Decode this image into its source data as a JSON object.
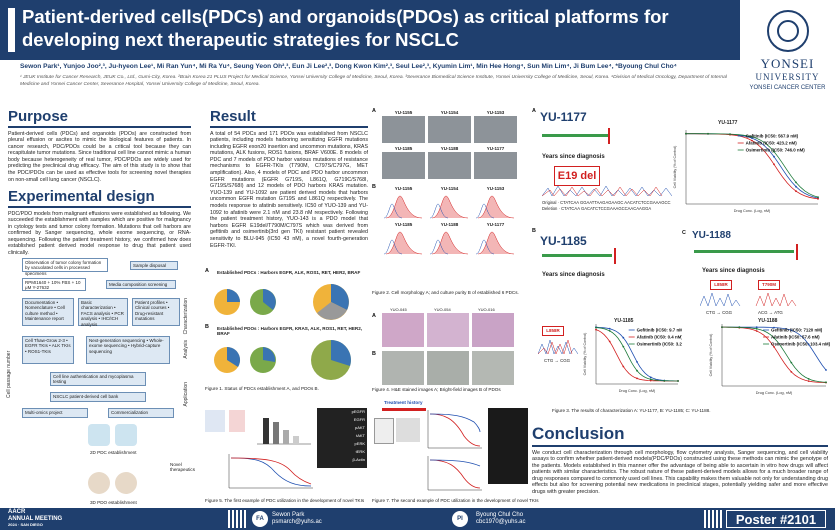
{
  "header": {
    "title_line1": "Patient-derived cells(PDCs) and organoids(PDOs) as critical platforms for",
    "title_line2": "developing next therapeutic strategies for NSCLC",
    "authors": "Sewon Park¹, Yunjoo Joo²,³, Ju-hyeon Lee¹, Mi Ran Yun⁴, Mi Ra Yu⁴, Seung Yeon Oh²,³, Eun Ji Lee²,³, Dong Kwon Kim²,³, Seul Lee²,³, Kyumin Lim¹, Min Hee Hong⁴, Sun Min Lim⁴, Ji Bum Lee⁴, *Byoung Chul Cho⁴",
    "affiliations": "¹ JEUK Institute for Cancer Research, JEUK Co., Ltd., Gumi-City, Korea. ²Brain Korea 21 PLUS Project for Medical Science, Yonsei University College of Medicine, Seoul, Korea. ³Severance Biomedical Science Institute, Yonsei University College of Medicine, Seoul, Korea. ⁴Division of Medical Oncology, Department of Internal Medicine and Yonsei Cancer Center, Severance Hospital, Yonsei University College of Medicine, Seoul, Korea.",
    "logo_line1": "YONSEI",
    "logo_line2": "UNIVERSITY",
    "logo_sub": "YONSEI CANCER CENTER"
  },
  "purpose": {
    "heading": "Purpose",
    "text": "Patient-derived cells (PDCs) and organoids (PDOs) are constructed from pleural effusion or ascites to mimic the biological features of patients. In cancer research, PDC/PDOs could be a critical tool because they can recapitulate tumor mutations. Since traditional cell line cannot mimic a human body because heterogeneity of real tumor, PDC/PDOs are widely used for predicting the preclinical drug efficacy. The aim of this study is to show that the PDC/PDOs can be used as effective tools for screening novel therapies on non-small cell lung cancer (NSCLC)."
  },
  "design": {
    "heading": "Experimental design",
    "text": "PDC/PDO models from malignant effusions were established as following. We succeeded the establishment with samples which are positive for malignancy in cytology tests and tumor colony formation. Mutations that cell harbors are confirmed by Sanger sequencing, whole exome sequencing, or RNA-sequencing. Following the patient treatment history, we confirmed how does established patient derived model response to drug that patient used clinically.",
    "flow": {
      "b1": "Observation of tumor colony formation by vacuolated cells in processed specimens",
      "b2": "Sample disposal",
      "b3": "RPMI1640 + 10% FBS + 10 μM Y-27632",
      "b4": "Media composition screening",
      "b5": "Documentation • Nomenclature • Cell culture method • Maintenance report",
      "b6": "Basic characterization • FACS analysis • PCR analysis • IHC/ICH analysis",
      "b7": "Patient profiles • Clinical courses • Drug-resistant mutations",
      "b8": "Cell Thaw-Grow 2-3 • EGFR TKIs • ALK TKIs • ROS1-TKIs",
      "b9": "Next-generation sequencing • Whole-exome sequencing • Hybrid-capture sequencing",
      "b10": "Cell line authentication and mycoplasma testing",
      "b11": "NSCLC patient-derived cell bank",
      "b12": "Multi-omics project",
      "b13": "Commercialization",
      "s1": "Cell passage number",
      "s2": "Characterization",
      "s3": "Analysis",
      "s4": "Application"
    }
  },
  "result": {
    "heading": "Result",
    "text": "A total of 54 PDCs and 171 PDOs was established from NSCLC patients, including models harboring sensitizing EGFR mutations including EGFR exon20 insertion and uncommon mutations, KRAS mutations, ALK fusions, ROS1 fusions, BRAF V600E. 8 models of PDC and 7 models of PDO harbor various mutations of resistance mechanisms to EGFR-TKIs (T790M, C797S/C797G, MET amplification). Also, 4 models of PDC and PDO harbor uncommon EGFR mutations (EGFR G719S, L861Q, G719C/S768I, G719S/S768I) and 12 models of PDO harbors KRAS mutation. YUO-139 and YU-1092 are patient derived models that harbors uncommon EGFR mutation G719S and L861Q respectively. The models response to afatinib sensitively. IC50 of YUO-139 and YU-1092 to afatinib were 2.1 nM and 23.8 nM respectively. Following the patient treatment history, YUO-143 is a PDO model that harbors EGFR E19del/T790M/C797S which was derived from gefitinib and osimertinib(3rd gen TKI) resistant patient revealed sensitivity to BLU-945 (IC50 43 nM), a novel fourth-generation EGFR-TKI."
  },
  "fig1": {
    "panel_a": "A",
    "panel_b": "B",
    "title_a": "Established PDCs : Harbors EGFR, ALK, ROS1, RET, HER2, BRAF",
    "title_b": "Established PDOs : Harbors EGFR, KRAS, ALK, ROS1, RET, HER2, BRAF",
    "caption": "Figure 1. Status of PDCs establishment A, and PDOs B."
  },
  "fig2": {
    "panel_a": "A",
    "panel_b": "B",
    "labels_a": [
      "YU-1155",
      "YU-1154",
      "YU-1153",
      "YU-1185",
      "YU-1188",
      "YU-1177"
    ],
    "labels_b": [
      "YU-1155",
      "YU-1154",
      "YU-1153",
      "YU-1185",
      "YU-1188",
      "YU-1177"
    ],
    "caption": "Figure 2. Cell morphology A; and culture purity B of established 6 PDCs."
  },
  "fig4": {
    "panel_a": "A",
    "panel_b": "B",
    "labels": [
      "YUO-045",
      "YUO-054",
      "YUO-016"
    ],
    "caption": "Figure 4. H&E stained images A; Bright-field images B of PDOs"
  },
  "fig3": {
    "panel_a": "A",
    "panel_b": "B",
    "panel_c": "C",
    "a_title": "YU-1177",
    "a_mut": "E19 del",
    "a_years": "Years since diagnosis",
    "a_chart_title": "YU-1177",
    "a_seq_orig": "Original · CTATCAA GGAATTAAGAGAAGC AACATCTCCGAAAGCC",
    "a_seq_del": "Deletion · CTATCAA GACATCTCCGAAAGCCAACAAGGA",
    "a_legend": [
      "Gefitinib (IC50: 567.9 nM)",
      "Afatinib (IC50: 423.2 nM)",
      "Osimertinib (IC50: 746.0 nM)"
    ],
    "b_title": "YU-1185",
    "b_years": "Years since diagnosis",
    "b_mut": "L858R",
    "b_seq": "CTG → CGG",
    "b_chart_title": "YU-1185",
    "b_legend": [
      "Gefitinib (IC50: 9.7 nM)",
      "Afatinib (IC50: 0.4 nM)",
      "Osimertinib (IC50: 3.2 nM)"
    ],
    "c_title": "YU-1188",
    "c_years": "Years since diagnosis",
    "c_mut1": "L858R",
    "c_mut2": "T790M",
    "c_seq1": "CTG → CGG",
    "c_seq2": "ACG → ATG",
    "c_chart_title": "YU-1188",
    "c_legend": [
      "Gefitinib (IC50: 7120 nM)",
      "Afatinib (IC50: 57.6 nM)",
      "Osimertinib (IC50: 103.4 nM)"
    ],
    "ylabel": "Cell Viability (% of Control)",
    "xlabel": "Drug Conc. (Log, nM)",
    "caption": "Figure 3. The results of characterization A: YU-1177, B: YU-1185; C: YU-1188."
  },
  "fig5": {
    "caption": "Figure 5. The first example of PDC utilization in the development of novel TKIs",
    "top_label": "2D PDC establishment",
    "bottom_label": "3D PDO establishment",
    "side_label": "Novel therapeutics",
    "blot_labels": [
      "pEGFR",
      "EGFR",
      "pAKT",
      "tAKT",
      "pERK",
      "tERK",
      "β-Actin"
    ]
  },
  "fig7": {
    "caption": "Figure 7. The second example of PDC utilization in the development of novel TKIs",
    "treat_label": "Treatment history"
  },
  "conclusion": {
    "heading": "Conclusion",
    "text": "We conduct cell characterization through cell morphology, flow cytometry analysis, Sanger sequencing, and cell viability assays to confirm whether patient-derived models(PDC/PDOs) constructed using these methods can mimic the genotype of the patients. Models established in this manner offer the advantage of being able to ascertain in vitro how drugs will affect patients with similar characteristics. The robust nature of these patient-derived models allows for a much broader range of drug responses compared to commonly used cell lines. This capability makes them valuable not only for understanding drug effects but also for screening potential new medications in preclinical stages, potentially yielding safer and more effective drugs with greater precision."
  },
  "footer": {
    "event_line1": "AACR",
    "event_line2": "ANNUAL MEETING",
    "event_line3": "2024 · SAN DIEGO",
    "fa_badge": "FA",
    "fa_name": "Sewon Park",
    "fa_email": "psmarch@yuhs.ac",
    "pi_badge": "PI",
    "pi_name": "Byoung Chul Cho",
    "pi_email": "cbc1970@yuhs.ac",
    "poster": "Poster #2101"
  },
  "colors": {
    "primary": "#1f3f6e",
    "gefitinib": "#1f4fb0",
    "afatinib": "#d22020",
    "osimertinib": "#1d7a3a",
    "e19": "#d22020"
  }
}
